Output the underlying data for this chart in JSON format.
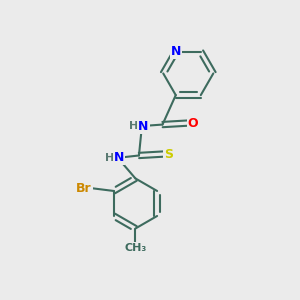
{
  "background_color": "#EBEBEB",
  "bond_color": "#3d6b5e",
  "bond_width": 1.5,
  "atom_colors": {
    "N": "#0000FF",
    "O": "#FF0000",
    "S": "#CCCC00",
    "Br": "#CC8800",
    "C": "#3d6b5e",
    "H": "#5a7a72"
  }
}
